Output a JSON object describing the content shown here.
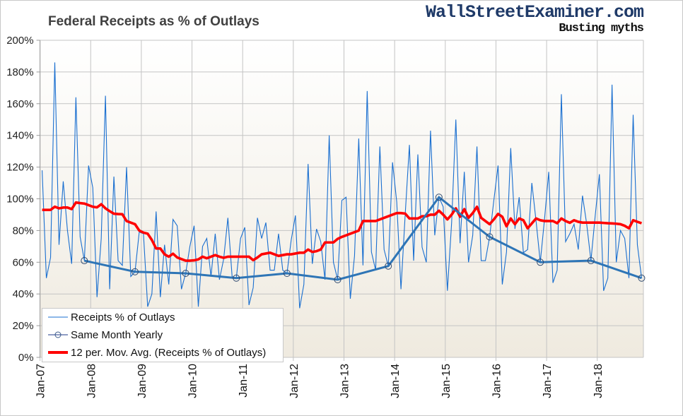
{
  "branding": {
    "site": "WallStreetExaminer.com",
    "tagline": "Busting myths"
  },
  "chart_data": {
    "type": "line",
    "title": "Federal Receipts as % of Outlays",
    "xlabel": "",
    "ylabel": "",
    "ylim": [
      0,
      200
    ],
    "y_ticks": [
      "0%",
      "20%",
      "40%",
      "60%",
      "80%",
      "100%",
      "120%",
      "140%",
      "160%",
      "180%",
      "200%"
    ],
    "x_ticks": [
      "Jan-07",
      "Jan-08",
      "Jan-09",
      "Jan-10",
      "Jan-11",
      "Jan-12",
      "Jan-13",
      "Jan-14",
      "Jan-15",
      "Jan-16",
      "Jan-17",
      "Jan-18"
    ],
    "x_range": "Jan-07 to Nov-18 (monthly)",
    "grid": true,
    "legend_position": "bottom-left",
    "colors": {
      "monthly": "#1a6fd0",
      "yearly": "#2e75b6",
      "moving_avg": "#ff0000"
    },
    "series": [
      {
        "name": "Receipts % of Outlays",
        "start": "Jan-07",
        "values": [
          118,
          50,
          63,
          186,
          71,
          111,
          80,
          59,
          164,
          76,
          61,
          121,
          107,
          38,
          75,
          165,
          43,
          114,
          61,
          58,
          120,
          51,
          54,
          79,
          78,
          32,
          40,
          92,
          38,
          71,
          46,
          87,
          83,
          43,
          53,
          70,
          83,
          32,
          70,
          75,
          51,
          78,
          49,
          62,
          88,
          51,
          50,
          75,
          82,
          33,
          44,
          88,
          75,
          85,
          55,
          55,
          78,
          55,
          53,
          74,
          89.5,
          31,
          46,
          122,
          59,
          81,
          73,
          49,
          140,
          60,
          49,
          99,
          101,
          37,
          64,
          138,
          58,
          168,
          66.5,
          55,
          133,
          68,
          57.6,
          123,
          98,
          43,
          90,
          134,
          61,
          128,
          69.5,
          60,
          143,
          77,
          101,
          95,
          42,
          85,
          150,
          72,
          117,
          60,
          77,
          133,
          61,
          61,
          76,
          99,
          121,
          46,
          66.5,
          132,
          81,
          101,
          66,
          68,
          110,
          86,
          60,
          87,
          117,
          47,
          55,
          166,
          73,
          78,
          84,
          68,
          102,
          84,
          61,
          89,
          115.5,
          42,
          50,
          172,
          60,
          80,
          75,
          50,
          153,
          71,
          50
        ]
      },
      {
        "name": "Same Month Yearly",
        "months": [
          "Nov-07",
          "Nov-08",
          "Nov-09",
          "Nov-10",
          "Nov-11",
          "Nov-12",
          "Nov-13",
          "Nov-14",
          "Nov-15",
          "Nov-16",
          "Nov-17",
          "Nov-18"
        ],
        "month_index": [
          10,
          22,
          34,
          46,
          58,
          70,
          82,
          94,
          106,
          118,
          130,
          142
        ],
        "values": [
          61,
          54,
          53,
          50,
          53,
          49,
          57.6,
          101,
          76,
          60,
          61,
          50
        ]
      },
      {
        "name": "12 per. Mov. Avg. (Receipts % of Outlays)",
        "start": "Jan-07",
        "values": [
          93,
          93,
          93,
          95,
          94,
          94.5,
          94.5,
          93.5,
          97.7,
          97.3,
          97,
          96,
          95,
          94.6,
          96.6,
          94,
          92.2,
          90.6,
          90.4,
          90.3,
          86,
          85,
          84,
          80,
          78.7,
          78,
          74,
          68.7,
          68.7,
          65,
          63.5,
          65.4,
          63,
          62,
          61,
          61,
          61.2,
          61.8,
          63.5,
          62.5,
          63.5,
          64.5,
          63.5,
          62.8,
          63.5,
          63.5,
          63.5,
          63.5,
          63.5,
          63.5,
          61.3,
          63,
          65,
          65.5,
          66,
          65,
          64,
          64.5,
          65,
          65,
          65.5,
          66,
          66,
          68,
          66.5,
          67,
          68,
          72.5,
          72.5,
          72.5,
          74.7,
          76,
          77,
          78,
          79,
          80,
          86,
          86,
          86,
          86,
          87,
          88,
          89,
          90,
          91,
          91,
          90.7,
          87.6,
          87.6,
          87.6,
          89,
          89,
          90,
          90,
          92.5,
          90,
          87,
          90,
          94,
          88.7,
          93.5,
          88,
          91,
          95,
          88,
          86,
          84,
          87,
          90.5,
          88.7,
          82.7,
          87.6,
          84,
          87.6,
          86.5,
          81.4,
          84.5,
          87.6,
          86.5,
          86,
          86,
          86,
          84.6,
          87.6,
          86,
          84.9,
          86.5,
          85.5,
          85,
          85,
          85,
          85,
          85,
          84.8,
          84.6,
          84.5,
          84.3,
          84,
          83,
          81.4,
          86.5,
          85.5,
          84.6
        ]
      }
    ]
  }
}
